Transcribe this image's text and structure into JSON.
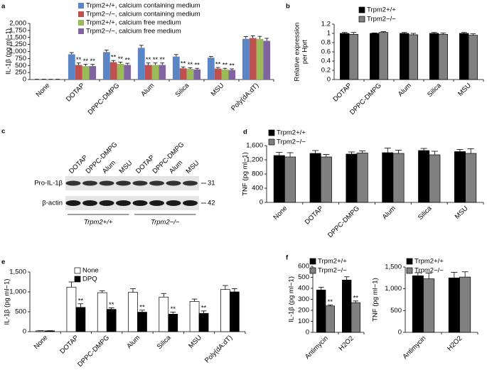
{
  "chart_data": [
    {
      "type": "bar",
      "label": "a",
      "y_label": "IL-1β (pg ml−1)",
      "categories": [
        "None",
        "DOTAP",
        "DPPC-DMPG",
        "Alum",
        "Silica",
        "MSU",
        "Poly(dA:dT)"
      ],
      "series": [
        {
          "name": "Trpm2+/+, calcium containing medium",
          "color": "#5b86c5",
          "values": [
            10,
            900,
            980,
            1130,
            820,
            780,
            1450
          ],
          "errors": [
            5,
            60,
            70,
            90,
            70,
            40,
            80
          ]
        },
        {
          "name": "Trpm2−/−, calcium containing medium",
          "color": "#c0504d",
          "values": [
            10,
            520,
            620,
            520,
            400,
            390,
            1480
          ],
          "errors": [
            5,
            70,
            60,
            70,
            50,
            40,
            80
          ],
          "significance": [
            null,
            "**",
            "**",
            "**",
            "**",
            "**",
            null
          ]
        },
        {
          "name": "Trpm2+/+, calcium free medium",
          "color": "#9bbb59",
          "values": [
            10,
            480,
            560,
            520,
            380,
            360,
            1450
          ],
          "errors": [
            5,
            60,
            60,
            70,
            40,
            40,
            90
          ],
          "significance": [
            null,
            "**",
            "**",
            "**",
            "**",
            "**",
            null
          ]
        },
        {
          "name": "Trpm2−/−, calcium free medium",
          "color": "#8064a2",
          "values": [
            10,
            480,
            520,
            520,
            360,
            340,
            1380
          ],
          "errors": [
            5,
            60,
            60,
            70,
            40,
            40,
            90
          ],
          "significance": [
            null,
            "**",
            "**",
            "**",
            "**",
            "**",
            null
          ]
        }
      ],
      "ylim": [
        0,
        2000
      ],
      "yticks": [
        0,
        250,
        500,
        750,
        {
          "value": 1000,
          "label": "1,000"
        },
        {
          "value": 1250,
          "label": "1,250"
        },
        {
          "value": 1500,
          "label": "1,500"
        },
        {
          "value": 1750,
          "label": "1,750"
        },
        {
          "value": 2000,
          "label": "2,000"
        }
      ]
    },
    {
      "type": "bar",
      "label": "b",
      "y_label": [
        "Relative expression",
        "per Hprt"
      ],
      "categories": [
        "DOTAP",
        "DPPC-DMPG",
        "Alum",
        "Silica",
        "MSU"
      ],
      "series": [
        {
          "name": "Trpm2+/+",
          "color": "#000000",
          "values": [
            1.0,
            1.0,
            1.0,
            1.0,
            1.0
          ],
          "errors": [
            0.02,
            0.01,
            0.02,
            0.02,
            0.02
          ]
        },
        {
          "name": "Trpm2−/−",
          "color": "#808080",
          "values": [
            0.98,
            1.02,
            0.97,
            0.98,
            0.96
          ],
          "errors": [
            0.04,
            0.02,
            0.03,
            0.03,
            0.03
          ]
        }
      ],
      "ylim": [
        0,
        1.2
      ],
      "yticks": [
        0,
        0.2,
        0.4,
        0.6,
        0.8,
        1,
        1.2
      ]
    },
    {
      "type": "bar",
      "label": "d",
      "y_label": "TNF (pg ml−1)",
      "categories": [
        "None",
        "DOTAP",
        "DPPC-DMPG",
        "Alum",
        "Silica",
        "MSU"
      ],
      "series": [
        {
          "name": "Trpm2+/+",
          "color": "#000000",
          "values": [
            1320,
            1380,
            1360,
            1400,
            1460,
            1430
          ],
          "errors": [
            90,
            80,
            60,
            130,
            60,
            60
          ]
        },
        {
          "name": "Trpm2−/−",
          "color": "#808080",
          "values": [
            1280,
            1280,
            1390,
            1380,
            1340,
            1380
          ],
          "errors": [
            120,
            70,
            60,
            90,
            100,
            130
          ]
        }
      ],
      "ylim": [
        0,
        1600
      ],
      "yticks": [
        0,
        400,
        800,
        {
          "value": 1200,
          "label": "1,200"
        },
        {
          "value": 1600,
          "label": "1,600"
        }
      ]
    },
    {
      "type": "bar",
      "label": "e",
      "y_label": "IL-1β (pg ml−1)",
      "categories": [
        "None",
        "DOTAP",
        "DPPC-DMPG",
        "Alum",
        "Silica",
        "MSU",
        "Poly(dA:dT)"
      ],
      "series": [
        {
          "name": "None",
          "color": "#ffffff",
          "values": [
            20,
            1120,
            980,
            990,
            870,
            760,
            1060
          ],
          "errors": [
            5,
            130,
            50,
            90,
            90,
            60,
            100
          ]
        },
        {
          "name": "DPQ",
          "color": "#000000",
          "values": [
            20,
            610,
            560,
            490,
            440,
            460,
            1000
          ],
          "errors": [
            5,
            90,
            40,
            50,
            50,
            60,
            80
          ],
          "significance": [
            null,
            "**",
            "**",
            "**",
            "**",
            "**",
            null
          ]
        }
      ],
      "ylim": [
        0,
        1500
      ],
      "yticks": [
        0,
        500,
        {
          "value": 1000,
          "label": "1,000"
        },
        {
          "value": 1500,
          "label": "1,500"
        }
      ]
    },
    {
      "type": "bar",
      "label": "f",
      "y_label": "IL-1β (pg ml−1)",
      "categories": [
        "Antimycin",
        "H2O2"
      ],
      "series": [
        {
          "name": "Trpm2+/+",
          "color": "#000000",
          "values": [
            385,
            475
          ],
          "errors": [
            25,
            30
          ]
        },
        {
          "name": "Trpm2−/−",
          "color": "#808080",
          "values": [
            240,
            270
          ],
          "errors": [
            10,
            15
          ],
          "significance": [
            "**",
            "**"
          ]
        }
      ],
      "ylim": [
        0,
        600
      ],
      "yticks": [
        0,
        100,
        200,
        300,
        400,
        500,
        600
      ]
    },
    {
      "type": "bar",
      "y_label": "TNF (pg ml−1)",
      "categories": [
        "Antimycin",
        "H2O2"
      ],
      "series": [
        {
          "name": "Trpm2+/+",
          "color": "#000000",
          "values": [
            1300,
            1250
          ],
          "errors": [
            70,
            130
          ]
        },
        {
          "name": "Trpm2−/−",
          "color": "#808080",
          "values": [
            1230,
            1270
          ],
          "errors": [
            130,
            120
          ]
        }
      ],
      "ylim": [
        0,
        1500
      ],
      "yticks": [
        0,
        500,
        {
          "value": 1000,
          "label": "1,000"
        },
        {
          "value": 1500,
          "label": "1,500"
        }
      ]
    }
  ],
  "blot": {
    "label": "c",
    "lanes": [
      "DOTAP",
      "DPPC-DMPG",
      "Alum",
      "MSU",
      "DOTAP",
      "DPPC-DMPG",
      "Alum",
      "MSU"
    ],
    "rows": [
      {
        "name": "Pro-IL-1β",
        "size": 31
      },
      {
        "name": "β-actin",
        "size": 42
      }
    ],
    "groups": [
      "Trpm2+/+",
      "Trpm2−/−"
    ]
  }
}
